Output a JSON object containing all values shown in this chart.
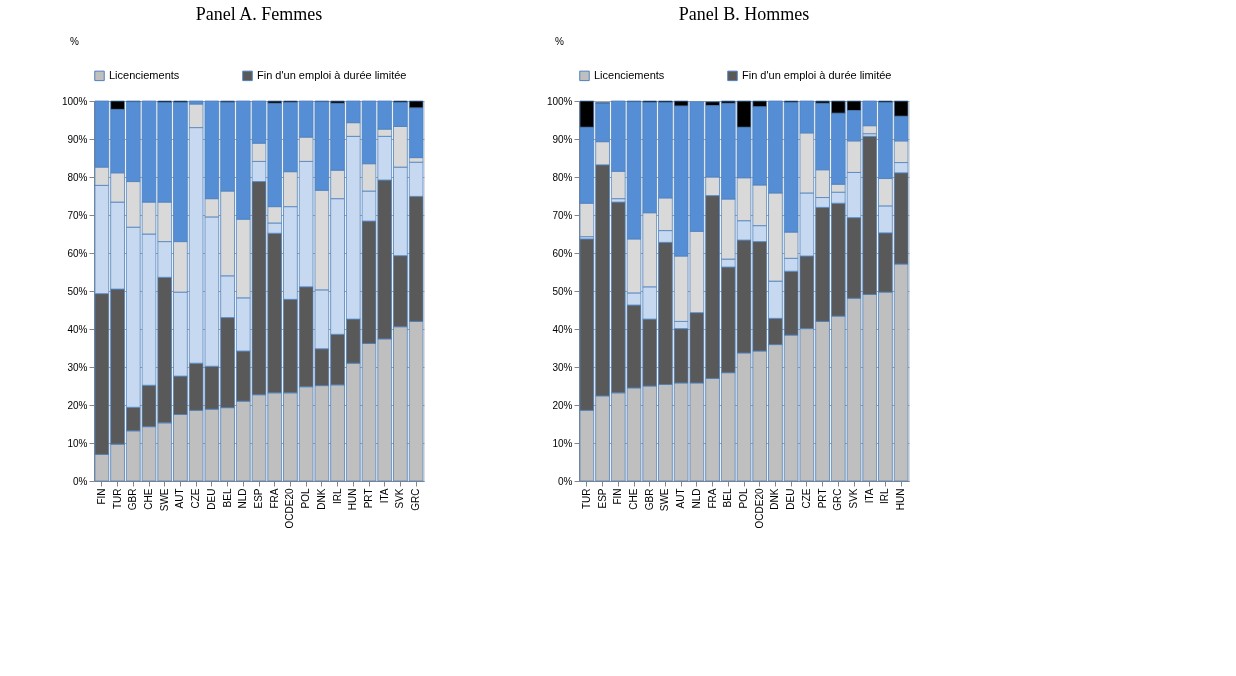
{
  "chart_data": [
    {
      "type": "bar",
      "title": "Panel A. Femmes",
      "ylabel": "%",
      "stacked": true,
      "legend": "top",
      "grid": "y",
      "categories": [
        "FIN",
        "TUR",
        "GBR",
        "CHE",
        "SWE",
        "AUT",
        "CZE",
        "DEU",
        "BEL",
        "NLD",
        "ESP",
        "FRA",
        "OCDE20",
        "POL",
        "DNK",
        "IRL",
        "HUN",
        "PRT",
        "ITA",
        "SVK",
        "GRC"
      ],
      "ylim": [
        0,
        100
      ],
      "yticks": [
        {
          "value": 0,
          "label": "0%"
        },
        {
          "value": 10,
          "label": "10%"
        },
        {
          "value": 20,
          "label": "20%"
        },
        {
          "value": 30,
          "label": "30%"
        },
        {
          "value": 40,
          "label": "40%"
        },
        {
          "value": 50,
          "label": "50%"
        },
        {
          "value": 60,
          "label": "60%"
        },
        {
          "value": 70,
          "label": "70%"
        },
        {
          "value": 80,
          "label": "80%"
        },
        {
          "value": 90,
          "label": "90%"
        },
        {
          "value": 100,
          "label": "100%"
        }
      ],
      "series": [
        {
          "name": "Licenciements",
          "color": "#bfbfbf",
          "values": [
            7,
            9.7,
            13.2,
            14.3,
            15.3,
            17.5,
            18.6,
            18.9,
            19.3,
            21.0,
            22.7,
            23.2,
            23.2,
            24.8,
            25.1,
            25.3,
            31.0,
            36.2,
            37.4,
            40.6,
            42.0
          ]
        },
        {
          "name": "Fin d'un emploi à durée limitée",
          "color": "#595959",
          "values": [
            42.3,
            40.8,
            6.2,
            10.9,
            38.3,
            10.1,
            12.4,
            11.3,
            23.7,
            13.2,
            56.1,
            42.0,
            24.6,
            26.3,
            9.7,
            13.3,
            11.6,
            32.2,
            41.8,
            18.7,
            32.9
          ]
        },
        {
          "color": "#c6d9f1",
          "values": [
            28.5,
            22.9,
            47.4,
            39.8,
            9.4,
            22.1,
            62.0,
            39.3,
            11.0,
            14.0,
            5.3,
            2.7,
            24.4,
            33.0,
            15.5,
            35.7,
            48.1,
            7.9,
            11.5,
            23.3,
            9.0
          ]
        },
        {
          "color": "#d9d9d9",
          "values": [
            4.8,
            7.7,
            12.0,
            8.4,
            10.4,
            13.3,
            6.2,
            4.8,
            22.3,
            20.7,
            4.8,
            4.3,
            9.2,
            6.4,
            26.2,
            7.5,
            3.6,
            7.2,
            1.9,
            10.7,
            1.2
          ]
        },
        {
          "color": "#558ed5",
          "values": [
            17.4,
            16.7,
            21.0,
            26.6,
            26.2,
            36.6,
            0.8,
            25.7,
            23.4,
            31.1,
            11.1,
            27.2,
            18.2,
            9.5,
            23.3,
            17.6,
            5.7,
            16.5,
            7.4,
            6.3,
            13.1
          ]
        },
        {
          "color": "#000000",
          "values": [
            0,
            2.2,
            0.2,
            0,
            0.4,
            0.4,
            0,
            0,
            0.3,
            0,
            0,
            0.6,
            0.4,
            0,
            0.2,
            0.6,
            0,
            0,
            0,
            0.4,
            1.8
          ]
        }
      ]
    },
    {
      "type": "bar",
      "title": "Panel B. Hommes",
      "ylabel": "%",
      "stacked": true,
      "legend": "top",
      "grid": "y",
      "categories": [
        "TUR",
        "ESP",
        "FIN",
        "CHE",
        "GBR",
        "SWE",
        "AUT",
        "NLD",
        "FRA",
        "BEL",
        "POL",
        "OCDE20",
        "DNK",
        "DEU",
        "CZE",
        "PRT",
        "GRC",
        "SVK",
        "ITA",
        "IRL",
        "HUN"
      ],
      "ylim": [
        0,
        100
      ],
      "yticks": [
        {
          "value": 0,
          "label": "0%"
        },
        {
          "value": 10,
          "label": "10%"
        },
        {
          "value": 20,
          "label": "20%"
        },
        {
          "value": 30,
          "label": "30%"
        },
        {
          "value": 40,
          "label": "40%"
        },
        {
          "value": 50,
          "label": "50%"
        },
        {
          "value": 60,
          "label": "60%"
        },
        {
          "value": 70,
          "label": "70%"
        },
        {
          "value": 80,
          "label": "80%"
        },
        {
          "value": 90,
          "label": "90%"
        },
        {
          "value": 100,
          "label": "100%"
        }
      ],
      "series": [
        {
          "name": "Licenciements",
          "color": "#bfbfbf",
          "values": [
            18.6,
            22.4,
            23.2,
            24.5,
            25.0,
            25.4,
            25.8,
            25.8,
            27.0,
            28.5,
            33.7,
            34.2,
            35.9,
            38.4,
            40.1,
            42.0,
            43.4,
            48.1,
            49.1,
            49.7,
            57.1
          ]
        },
        {
          "name": "Fin d'un emploi à durée limitée",
          "color": "#595959",
          "values": [
            45.1,
            60.8,
            50.2,
            21.8,
            17.6,
            37.4,
            14.3,
            18.5,
            48.1,
            27.8,
            29.7,
            28.8,
            6.9,
            16.8,
            19.1,
            30.0,
            29.7,
            21.2,
            41.6,
            15.6,
            24.0
          ]
        },
        {
          "color": "#c6d9f1",
          "values": [
            0.6,
            null,
            0.9,
            3.2,
            8.5,
            3.1,
            1.9,
            null,
            null,
            2.1,
            5.1,
            4.2,
            9.8,
            3.4,
            16.6,
            2.6,
            2.9,
            11.9,
            0.7,
            7.1,
            2.7
          ]
        },
        {
          "color": "#d9d9d9",
          "values": [
            8.8,
            6.1,
            7.2,
            14.2,
            19.5,
            8.6,
            17.2,
            21.4,
            4.9,
            15.8,
            11.3,
            10.7,
            23.2,
            6.9,
            15.8,
            7.3,
            2.1,
            8.3,
            2.1,
            7.2,
            5.7
          ]
        },
        {
          "color": "#558ed5",
          "values": [
            20.0,
            10.1,
            18.5,
            36.1,
            29.0,
            25.1,
            39.5,
            34.1,
            18.8,
            25.2,
            13.3,
            20.6,
            24.2,
            34.1,
            8.4,
            17.5,
            18.7,
            8.0,
            6.5,
            20.0,
            6.5
          ]
        },
        {
          "color": "#000000",
          "values": [
            6.9,
            0.2,
            0,
            0.2,
            0.4,
            0.4,
            1.3,
            0,
            1.0,
            0.6,
            6.9,
            1.5,
            0,
            0.4,
            0,
            0.6,
            3.2,
            2.5,
            0,
            0.4,
            4.0
          ]
        }
      ]
    }
  ]
}
